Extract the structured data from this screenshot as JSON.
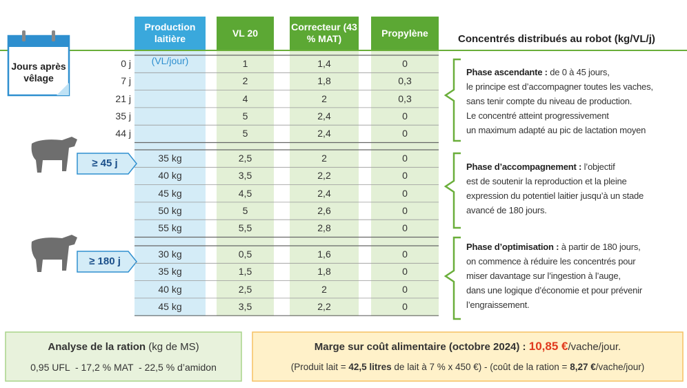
{
  "header": {
    "days_label": "Jours après vêlage",
    "production": "Production laitière",
    "production_unit": "(VL/jour)",
    "vl20": "VL 20",
    "correcteur": "Correcteur (43 % MAT)",
    "propylene": "Propylène",
    "title": "Concentrés distribués au robot (kg/VL/j)"
  },
  "phases": [
    {
      "rows": [
        {
          "day": "0 j",
          "vl20": "1",
          "correcteur": "1,4",
          "propylene": "0"
        },
        {
          "day": "7 j",
          "vl20": "2",
          "correcteur": "1,8",
          "propylene": "0,3"
        },
        {
          "day": "21 j",
          "vl20": "4",
          "correcteur": "2",
          "propylene": "0,3"
        },
        {
          "day": "35 j",
          "vl20": "5",
          "correcteur": "2,4",
          "propylene": "0"
        },
        {
          "day": "44 j",
          "vl20": "5",
          "correcteur": "2,4",
          "propylene": "0"
        }
      ],
      "note": {
        "title": "Phase ascendante :",
        "lines": [
          "de 0 à 45 jours,",
          "le principe est d’accompagner toutes les vaches,",
          "sans tenir compte du niveau de production.",
          "Le concentré atteint progressivement",
          "un maximum adapté au pic de lactation moyen"
        ]
      }
    },
    {
      "label": "≥ 45 j",
      "rows": [
        {
          "production": "35 kg",
          "vl20": "2,5",
          "correcteur": "2",
          "propylene": "0"
        },
        {
          "production": "40 kg",
          "vl20": "3,5",
          "correcteur": "2,2",
          "propylene": "0"
        },
        {
          "production": "45 kg",
          "vl20": "4,5",
          "correcteur": "2,4",
          "propylene": "0"
        },
        {
          "production": "50 kg",
          "vl20": "5",
          "correcteur": "2,6",
          "propylene": "0"
        },
        {
          "production": "55 kg",
          "vl20": "5,5",
          "correcteur": "2,8",
          "propylene": "0"
        }
      ],
      "note": {
        "title": "Phase d’accompagnement :",
        "lines": [
          "l’objectif",
          "est de soutenir la reproduction et la pleine",
          "expression du potentiel laitier jusqu’à un stade",
          "avancé de 180 jours."
        ]
      }
    },
    {
      "label": "≥ 180 j",
      "rows": [
        {
          "production": "30 kg",
          "vl20": "0,5",
          "correcteur": "1,6",
          "propylene": "0"
        },
        {
          "production": "35 kg",
          "vl20": "1,5",
          "correcteur": "1,8",
          "propylene": "0"
        },
        {
          "production": "40 kg",
          "vl20": "2,5",
          "correcteur": "2",
          "propylene": "0"
        },
        {
          "production": "45 kg",
          "vl20": "3,5",
          "correcteur": "2,2",
          "propylene": "0"
        }
      ],
      "note": {
        "title": "Phase d’optimisation :",
        "lines": [
          "à partir de 180 jours,",
          "on commence à réduire les concentrés pour",
          "miser davantage sur l’ingestion à l’auge,",
          "dans une logique d’économie et pour prévenir",
          "l’engraissement."
        ]
      }
    }
  ],
  "analysis": {
    "title": "Analyse de la ration",
    "unit": "(kg de MS)",
    "text": "0,95 UFL  - 17,2 % MAT  - 22,5 % d’amidon"
  },
  "margin": {
    "title": "Marge sur coût alimentaire (octobre 2024) :",
    "value": "10,85 €",
    "unit": "/vache/jour.",
    "parts": [
      "(Produit lait = ",
      "42,5 litres",
      " de lait à 7 % x 450 €) - (coût de la ration = ",
      "8,27 €",
      "/vache/jour)"
    ]
  }
}
